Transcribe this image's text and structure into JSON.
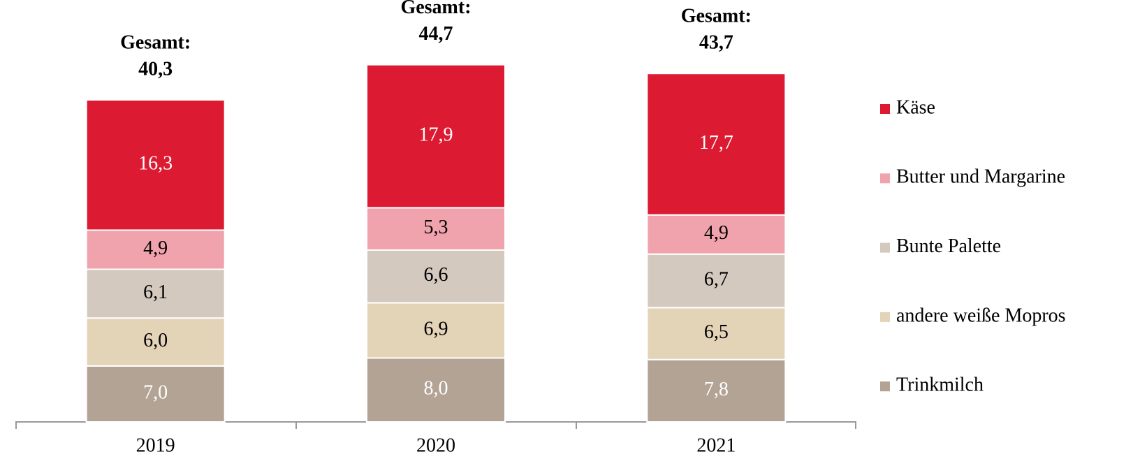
{
  "chart_data": {
    "type": "stacked_bar",
    "categories": [
      "2019",
      "2020",
      "2021"
    ],
    "series": [
      {
        "name": "Trinkmilch",
        "color": "#b3a394",
        "label_color": "#ffffff",
        "values": [
          7.0,
          8.0,
          7.8
        ],
        "value_labels": [
          "7,0",
          "8,0",
          "7,8"
        ]
      },
      {
        "name": "andere weiße Mopros",
        "color": "#e4d4b7",
        "label_color": "#000000",
        "values": [
          6.0,
          6.9,
          6.5
        ],
        "value_labels": [
          "6,0",
          "6,9",
          "6,5"
        ]
      },
      {
        "name": "Bunte Palette",
        "color": "#d4c9be",
        "label_color": "#000000",
        "values": [
          6.1,
          6.6,
          6.7
        ],
        "value_labels": [
          "6,1",
          "6,6",
          "6,7"
        ]
      },
      {
        "name": "Butter und Margarine",
        "color": "#f0a3ad",
        "label_color": "#000000",
        "values": [
          4.9,
          5.3,
          4.9
        ],
        "value_labels": [
          "4,9",
          "5,3",
          "4,9"
        ]
      },
      {
        "name": "Käse",
        "color": "#dc1a31",
        "label_color": "#ffffff",
        "values": [
          16.3,
          17.9,
          17.7
        ],
        "value_labels": [
          "16,3",
          "17,9",
          "17,7"
        ]
      }
    ],
    "total_label": "Gesamt:",
    "totals": {
      "values": [
        40.3,
        44.7,
        43.7
      ],
      "value_labels": [
        "40,3",
        "44,7",
        "43,7"
      ]
    },
    "legend": "right"
  }
}
